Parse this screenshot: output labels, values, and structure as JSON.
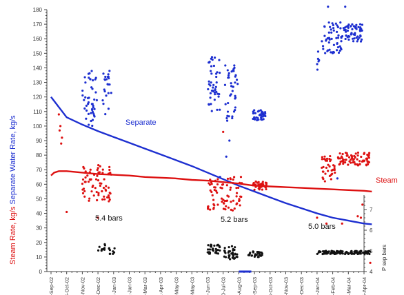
{
  "chart_data": {
    "type": "scatter",
    "x_ticks": [
      "3-Sep-02",
      "3-Oct-02",
      "2-Nov-02",
      "2-Dec-02",
      "1-Jan-03",
      "31-Jan-03",
      "2-Mar-03",
      "1-Apr-03",
      "1-May-03",
      "31-May-03",
      "30-Jun-03",
      "30-Jul-03",
      "29-Aug-03",
      "28-Sep-03",
      "28-Oct-03",
      "27-Nov-03",
      "27-Dec-03",
      "26-Jan-04",
      "25-Feb-04",
      "26-Mar-04",
      "25-Apr-04"
    ],
    "y_left_ticks": [
      0,
      10,
      20,
      30,
      40,
      50,
      60,
      70,
      80,
      90,
      100,
      110,
      120,
      130,
      140,
      150,
      160,
      170,
      180
    ],
    "y_left_range": [
      0,
      180
    ],
    "y_right_ticks": [
      4,
      5,
      6,
      7
    ],
    "y_right_range": [
      4,
      7.7
    ],
    "ylabel_left_parts": [
      {
        "text": "Steam Rate, kg/s",
        "color": "#dd1111"
      },
      {
        "text": "Separate Water Rate, kg/s",
        "color": "#1d2fd0"
      }
    ],
    "ylabel_right": "P sep bars",
    "annotations": [
      "5.4 bars",
      "5.2 bars",
      "5.0 bars"
    ],
    "series_labels": {
      "separate": "Separate",
      "steam": "Steam"
    },
    "trend_separate": {
      "x": [
        0,
        1,
        2,
        3,
        4,
        5,
        6,
        7,
        8,
        9,
        10,
        11,
        12,
        13,
        14,
        15,
        16,
        17,
        18,
        19,
        20,
        20.5
      ],
      "y": [
        120,
        106,
        101,
        96.5,
        92.5,
        88.5,
        84.5,
        80.5,
        76.5,
        72.5,
        68,
        63.5,
        59,
        55,
        51,
        47,
        43.5,
        40,
        37,
        35,
        33,
        32.5
      ]
    },
    "trend_steam": {
      "x": [
        0,
        0.2,
        0.5,
        1,
        2,
        3,
        4,
        5,
        6,
        7,
        8,
        9,
        10,
        11,
        12,
        13,
        14,
        15,
        16,
        17,
        18,
        19,
        20,
        20.5
      ],
      "y": [
        66,
        68,
        69,
        69,
        68,
        67,
        66.5,
        66,
        65,
        64.5,
        64,
        63,
        62.5,
        61.5,
        60.5,
        59,
        58.5,
        58,
        57.5,
        57,
        56.5,
        56,
        55.5,
        55
      ]
    },
    "clusters": [
      {
        "series": "separate",
        "x": [
          2.0,
          2.95
        ],
        "y": [
          100,
          138
        ],
        "n": 45
      },
      {
        "series": "separate",
        "x": [
          3.3,
          3.85
        ],
        "y": [
          108,
          138
        ],
        "n": 22
      },
      {
        "series": "separate",
        "x": [
          10.0,
          10.8
        ],
        "y": [
          110,
          148
        ],
        "n": 45
      },
      {
        "series": "separate",
        "x": [
          11.1,
          11.95
        ],
        "y": [
          102,
          142
        ],
        "n": 40
      },
      {
        "series": "separate",
        "x": [
          12.9,
          13.7
        ],
        "y": [
          104,
          111
        ],
        "n": 40
      },
      {
        "series": "separate",
        "x": [
          17.0,
          17.3
        ],
        "y": [
          138,
          155
        ],
        "n": 6
      },
      {
        "series": "separate",
        "x": [
          17.3,
          18.6
        ],
        "y": [
          150,
          172
        ],
        "n": 55
      },
      {
        "series": "separate",
        "x": [
          18.6,
          19.9
        ],
        "y": [
          158,
          170
        ],
        "n": 60
      },
      {
        "series": "steam",
        "x": [
          2.0,
          3.9
        ],
        "y": [
          48,
          74
        ],
        "n": 70
      },
      {
        "series": "steam",
        "x": [
          10.0,
          12.2
        ],
        "y": [
          42,
          66
        ],
        "n": 75
      },
      {
        "series": "steam",
        "x": [
          12.9,
          13.8
        ],
        "y": [
          56,
          62
        ],
        "n": 40
      },
      {
        "series": "steam",
        "x": [
          17.3,
          18.2
        ],
        "y": [
          62,
          80
        ],
        "n": 35
      },
      {
        "series": "steam",
        "x": [
          18.3,
          20.4
        ],
        "y": [
          73,
          82
        ],
        "n": 75
      },
      {
        "series": "pressure",
        "x": [
          3.0,
          3.5
        ],
        "y": [
          5.0,
          5.35
        ],
        "n": 10
      },
      {
        "series": "pressure",
        "x": [
          3.7,
          4.1
        ],
        "y": [
          4.85,
          5.2
        ],
        "n": 10
      },
      {
        "series": "pressure",
        "x": [
          10.0,
          10.8
        ],
        "y": [
          4.85,
          5.3
        ],
        "n": 30
      },
      {
        "series": "pressure",
        "x": [
          11.0,
          11.9
        ],
        "y": [
          4.6,
          5.25
        ],
        "n": 35
      },
      {
        "series": "pressure",
        "x": [
          12.6,
          13.5
        ],
        "y": [
          4.7,
          5.0
        ],
        "n": 30
      },
      {
        "series": "pressure",
        "x": [
          17.0,
          20.4
        ],
        "y": [
          4.85,
          5.0
        ],
        "n": 120
      }
    ],
    "outliers": [
      {
        "series": "separate",
        "x": 11.2,
        "y": 79
      },
      {
        "series": "separate",
        "x": 11.4,
        "y": 90
      },
      {
        "series": "separate",
        "x": 10.8,
        "y": 65
      },
      {
        "series": "separate",
        "x": 17.7,
        "y": 182
      },
      {
        "series": "separate",
        "x": 18.8,
        "y": 182
      },
      {
        "series": "separate",
        "x": 18.3,
        "y": 64
      },
      {
        "series": "steam",
        "x": 0.5,
        "y": 108
      },
      {
        "series": "steam",
        "x": 0.6,
        "y": 100
      },
      {
        "series": "steam",
        "x": 0.55,
        "y": 97
      },
      {
        "series": "steam",
        "x": 0.7,
        "y": 92
      },
      {
        "series": "steam",
        "x": 0.65,
        "y": 88
      },
      {
        "series": "steam",
        "x": 3.0,
        "y": 37
      },
      {
        "series": "steam",
        "x": 1.0,
        "y": 41
      },
      {
        "series": "steam",
        "x": 11.0,
        "y": 96
      },
      {
        "series": "steam",
        "x": 17.0,
        "y": 37
      },
      {
        "series": "steam",
        "x": 17.6,
        "y": 33
      },
      {
        "series": "steam",
        "x": 19.8,
        "y": 37
      },
      {
        "series": "steam",
        "x": 19.6,
        "y": 38
      },
      {
        "series": "steam",
        "x": 19.9,
        "y": 46
      },
      {
        "series": "steam",
        "x": 18.6,
        "y": 33
      },
      {
        "series": "steam",
        "x": 20.4,
        "y": 6.0
      }
    ],
    "highlight_x_range": [
      12.0,
      12.8
    ],
    "colors": {
      "separate": "#1d2fd0",
      "steam": "#dd1111",
      "pressure": "#111111",
      "axis": "#444444"
    }
  }
}
